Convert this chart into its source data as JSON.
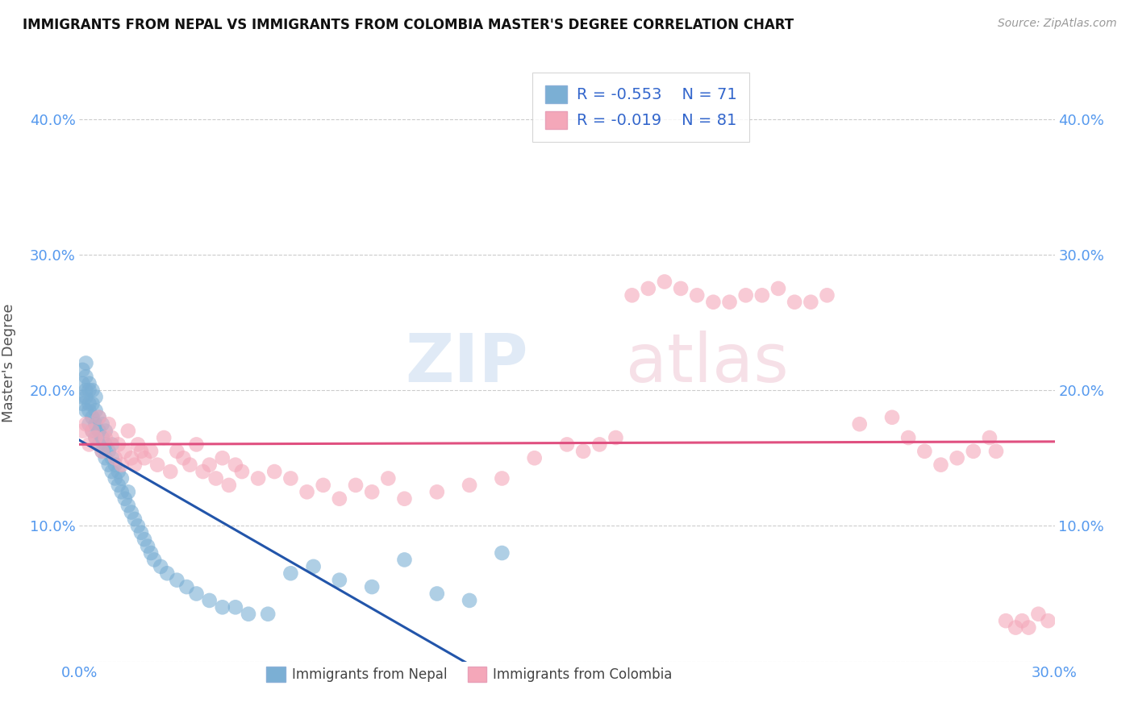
{
  "title": "IMMIGRANTS FROM NEPAL VS IMMIGRANTS FROM COLOMBIA MASTER'S DEGREE CORRELATION CHART",
  "source_text": "Source: ZipAtlas.com",
  "ylabel": "Master's Degree",
  "xlim": [
    0.0,
    0.3
  ],
  "ylim": [
    0.0,
    0.44
  ],
  "nepal_color": "#7bafd4",
  "colombia_color": "#f4a7b9",
  "nepal_line_color": "#2255aa",
  "colombia_line_color": "#e05080",
  "legend_R_nepal": "-0.553",
  "legend_N_nepal": "71",
  "legend_R_colombia": "-0.019",
  "legend_N_colombia": "81",
  "nepal_x": [
    0.001,
    0.001,
    0.001,
    0.001,
    0.002,
    0.002,
    0.002,
    0.002,
    0.002,
    0.003,
    0.003,
    0.003,
    0.003,
    0.003,
    0.004,
    0.004,
    0.004,
    0.004,
    0.005,
    0.005,
    0.005,
    0.005,
    0.006,
    0.006,
    0.006,
    0.007,
    0.007,
    0.007,
    0.008,
    0.008,
    0.008,
    0.009,
    0.009,
    0.01,
    0.01,
    0.01,
    0.011,
    0.011,
    0.012,
    0.012,
    0.013,
    0.013,
    0.014,
    0.015,
    0.015,
    0.016,
    0.017,
    0.018,
    0.019,
    0.02,
    0.021,
    0.022,
    0.023,
    0.025,
    0.027,
    0.03,
    0.033,
    0.036,
    0.04,
    0.044,
    0.048,
    0.052,
    0.058,
    0.065,
    0.072,
    0.08,
    0.09,
    0.1,
    0.11,
    0.12,
    0.13
  ],
  "nepal_y": [
    0.19,
    0.195,
    0.205,
    0.215,
    0.185,
    0.195,
    0.2,
    0.21,
    0.22,
    0.175,
    0.185,
    0.19,
    0.2,
    0.205,
    0.17,
    0.18,
    0.19,
    0.2,
    0.165,
    0.175,
    0.185,
    0.195,
    0.16,
    0.17,
    0.18,
    0.155,
    0.165,
    0.175,
    0.15,
    0.16,
    0.17,
    0.145,
    0.155,
    0.14,
    0.15,
    0.16,
    0.135,
    0.145,
    0.13,
    0.14,
    0.125,
    0.135,
    0.12,
    0.115,
    0.125,
    0.11,
    0.105,
    0.1,
    0.095,
    0.09,
    0.085,
    0.08,
    0.075,
    0.07,
    0.065,
    0.06,
    0.055,
    0.05,
    0.045,
    0.04,
    0.04,
    0.035,
    0.035,
    0.065,
    0.07,
    0.06,
    0.055,
    0.075,
    0.05,
    0.045,
    0.08
  ],
  "colombia_x": [
    0.001,
    0.002,
    0.003,
    0.004,
    0.005,
    0.006,
    0.007,
    0.008,
    0.009,
    0.01,
    0.011,
    0.012,
    0.013,
    0.014,
    0.015,
    0.016,
    0.017,
    0.018,
    0.019,
    0.02,
    0.022,
    0.024,
    0.026,
    0.028,
    0.03,
    0.032,
    0.034,
    0.036,
    0.038,
    0.04,
    0.042,
    0.044,
    0.046,
    0.048,
    0.05,
    0.055,
    0.06,
    0.065,
    0.07,
    0.075,
    0.08,
    0.085,
    0.09,
    0.095,
    0.1,
    0.11,
    0.12,
    0.13,
    0.14,
    0.15,
    0.155,
    0.16,
    0.165,
    0.17,
    0.175,
    0.18,
    0.185,
    0.19,
    0.195,
    0.2,
    0.205,
    0.21,
    0.215,
    0.22,
    0.225,
    0.23,
    0.24,
    0.25,
    0.255,
    0.26,
    0.265,
    0.27,
    0.275,
    0.28,
    0.282,
    0.285,
    0.288,
    0.29,
    0.292,
    0.295,
    0.298
  ],
  "colombia_y": [
    0.17,
    0.175,
    0.16,
    0.17,
    0.165,
    0.18,
    0.155,
    0.165,
    0.175,
    0.165,
    0.15,
    0.16,
    0.145,
    0.155,
    0.17,
    0.15,
    0.145,
    0.16,
    0.155,
    0.15,
    0.155,
    0.145,
    0.165,
    0.14,
    0.155,
    0.15,
    0.145,
    0.16,
    0.14,
    0.145,
    0.135,
    0.15,
    0.13,
    0.145,
    0.14,
    0.135,
    0.14,
    0.135,
    0.125,
    0.13,
    0.12,
    0.13,
    0.125,
    0.135,
    0.12,
    0.125,
    0.13,
    0.135,
    0.15,
    0.16,
    0.155,
    0.16,
    0.165,
    0.27,
    0.275,
    0.28,
    0.275,
    0.27,
    0.265,
    0.265,
    0.27,
    0.27,
    0.275,
    0.265,
    0.265,
    0.27,
    0.175,
    0.18,
    0.165,
    0.155,
    0.145,
    0.15,
    0.155,
    0.165,
    0.155,
    0.03,
    0.025,
    0.03,
    0.025,
    0.035,
    0.03
  ]
}
